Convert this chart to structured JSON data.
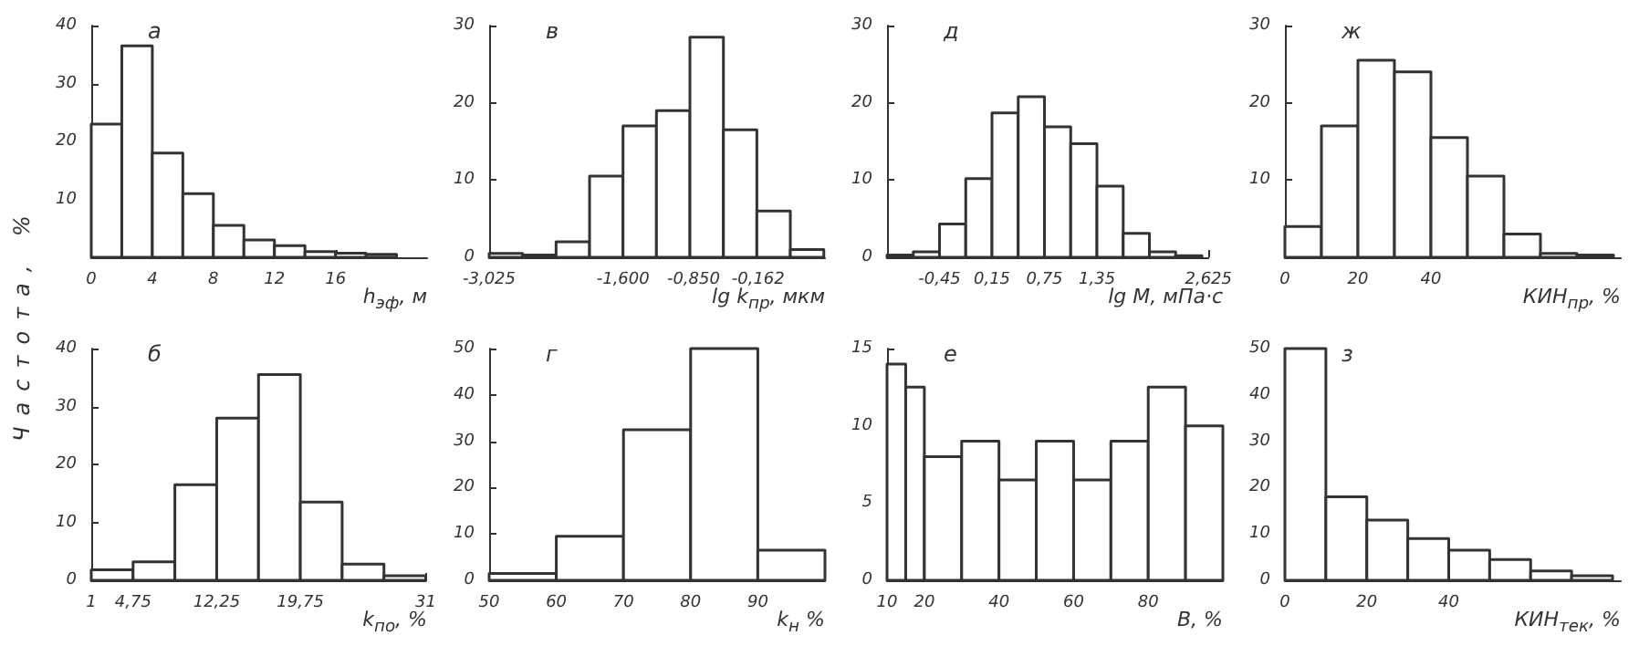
{
  "chart_data": [
    {
      "type": "histogram",
      "title": "а",
      "xlabel": "h$_{эф}$, м",
      "ylabel": "Частота, %",
      "color": "#333333",
      "bins": [
        0,
        2,
        4,
        6,
        8,
        10,
        12,
        14,
        16,
        18,
        20
      ],
      "values": [
        23,
        36.5,
        18,
        11,
        5.5,
        3,
        2,
        1,
        0.7,
        0.5
      ],
      "xlim": [
        0,
        22
      ],
      "xticks": [
        0,
        4,
        8,
        12,
        16
      ],
      "ylim": [
        0,
        40
      ],
      "yticks": [
        10,
        20,
        30,
        40
      ]
    },
    {
      "type": "histogram",
      "title": "в",
      "xlabel": "lg k$_{пр}$, мкм",
      "color": "#333333",
      "bins": [
        -3.025,
        -2.669,
        -2.3125,
        -1.956,
        -1.6,
        -1.244,
        -0.8875,
        -0.531,
        -0.175,
        0.181,
        0.5375
      ],
      "values": [
        0.5,
        0.3,
        2,
        10.5,
        17,
        19,
        28.5,
        16.5,
        6,
        1
      ],
      "xlim": [
        -3.025,
        0.55
      ],
      "xticks": [
        {
          "value": -3.025,
          "label": "-3,025"
        },
        {
          "value": -1.6,
          "label": "-1,600"
        },
        {
          "value": -0.85,
          "label": "-0,850"
        },
        {
          "value": -0.162,
          "label": "-0,162"
        }
      ],
      "ylim": [
        0,
        30
      ],
      "yticks": [
        0,
        10,
        20,
        30
      ]
    },
    {
      "type": "histogram",
      "title": "д",
      "xlabel": "lg M, мПа·с",
      "color": "#333333",
      "bins": [
        -1.05,
        -0.75,
        -0.45,
        -0.15,
        0.15,
        0.45,
        0.75,
        1.05,
        1.35,
        1.65,
        1.95,
        2.25,
        2.55
      ],
      "values": [
        0.3,
        0.7,
        4.3,
        10.2,
        18.7,
        20.8,
        16.9,
        14.7,
        9.2,
        3.1,
        0.7,
        0.2
      ],
      "xlim": [
        -1.05,
        2.625
      ],
      "xticks": [
        {
          "value": -0.45,
          "label": "-0,45"
        },
        {
          "value": 0.15,
          "label": "0,15"
        },
        {
          "value": 0.75,
          "label": "0,75"
        },
        {
          "value": 1.35,
          "label": "1,35"
        },
        {
          "value": 2.625,
          "label": "2,625"
        }
      ],
      "ylim": [
        0,
        30
      ],
      "yticks": [
        0,
        10,
        20,
        30
      ]
    },
    {
      "type": "histogram",
      "title": "ж",
      "xlabel": "КИН$_{пр}$, %",
      "color": "#333333",
      "bins": [
        0,
        10,
        20,
        30,
        40,
        50,
        60,
        70,
        80,
        90
      ],
      "values": [
        4,
        17,
        25.5,
        24,
        15.5,
        10.5,
        3,
        0.5,
        0.3
      ],
      "xlim": [
        0,
        92
      ],
      "xticks": [
        0,
        20,
        40
      ],
      "ylim": [
        0,
        30
      ],
      "yticks": [
        10,
        20,
        30
      ]
    },
    {
      "type": "histogram",
      "title": "б",
      "xlabel": "k$_{по}$, %",
      "color": "#333333",
      "bins": [
        1,
        4.75,
        8.5,
        12.25,
        16,
        19.75,
        23.5,
        27.25,
        31
      ],
      "values": [
        1.8,
        3.2,
        16.5,
        28,
        35.5,
        13.5,
        2.8,
        0.8
      ],
      "xlim": [
        1,
        31
      ],
      "xticks": [
        1,
        {
          "value": 4.75,
          "label": "4,75"
        },
        {
          "value": 12.25,
          "label": "12,25"
        },
        {
          "value": 19.75,
          "label": "19,75"
        },
        31
      ],
      "ylim": [
        0,
        40
      ],
      "yticks": [
        0,
        10,
        20,
        30,
        40
      ]
    },
    {
      "type": "histogram",
      "title": "г",
      "xlabel": "k$_{н}$ %",
      "color": "#333333",
      "bins": [
        50,
        60,
        70,
        80,
        90,
        100
      ],
      "values": [
        1.5,
        9.5,
        32.5,
        50,
        6.5
      ],
      "xlim": [
        50,
        100
      ],
      "xticks": [
        50,
        60,
        70,
        80,
        90
      ],
      "ylim": [
        0,
        50
      ],
      "yticks": [
        0,
        10,
        20,
        30,
        40,
        50
      ]
    },
    {
      "type": "histogram",
      "title": "е",
      "xlabel": "B, %",
      "color": "#333333",
      "bins": [
        10,
        15,
        20,
        30,
        40,
        50,
        60,
        70,
        80,
        90,
        100
      ],
      "values": [
        14,
        12.5,
        8,
        9,
        6.5,
        9,
        6.5,
        9,
        12.5,
        10
      ],
      "xlim": [
        10,
        100
      ],
      "xticks": [
        10,
        20,
        40,
        60,
        80
      ],
      "ylim": [
        0,
        15
      ],
      "yticks": [
        0,
        5,
        10,
        15
      ]
    },
    {
      "type": "histogram",
      "title": "з",
      "xlabel": "КИН$_{тек}$, %",
      "color": "#333333",
      "bins": [
        0,
        10,
        20,
        30,
        40,
        50,
        60,
        70,
        80
      ],
      "values": [
        50,
        18,
        13,
        9,
        6.5,
        4.5,
        2,
        1
      ],
      "xlim": [
        0,
        82
      ],
      "xticks": [
        0,
        20,
        40
      ],
      "ylim": [
        0,
        50
      ],
      "yticks": [
        0,
        10,
        20,
        30,
        40,
        50
      ]
    }
  ]
}
